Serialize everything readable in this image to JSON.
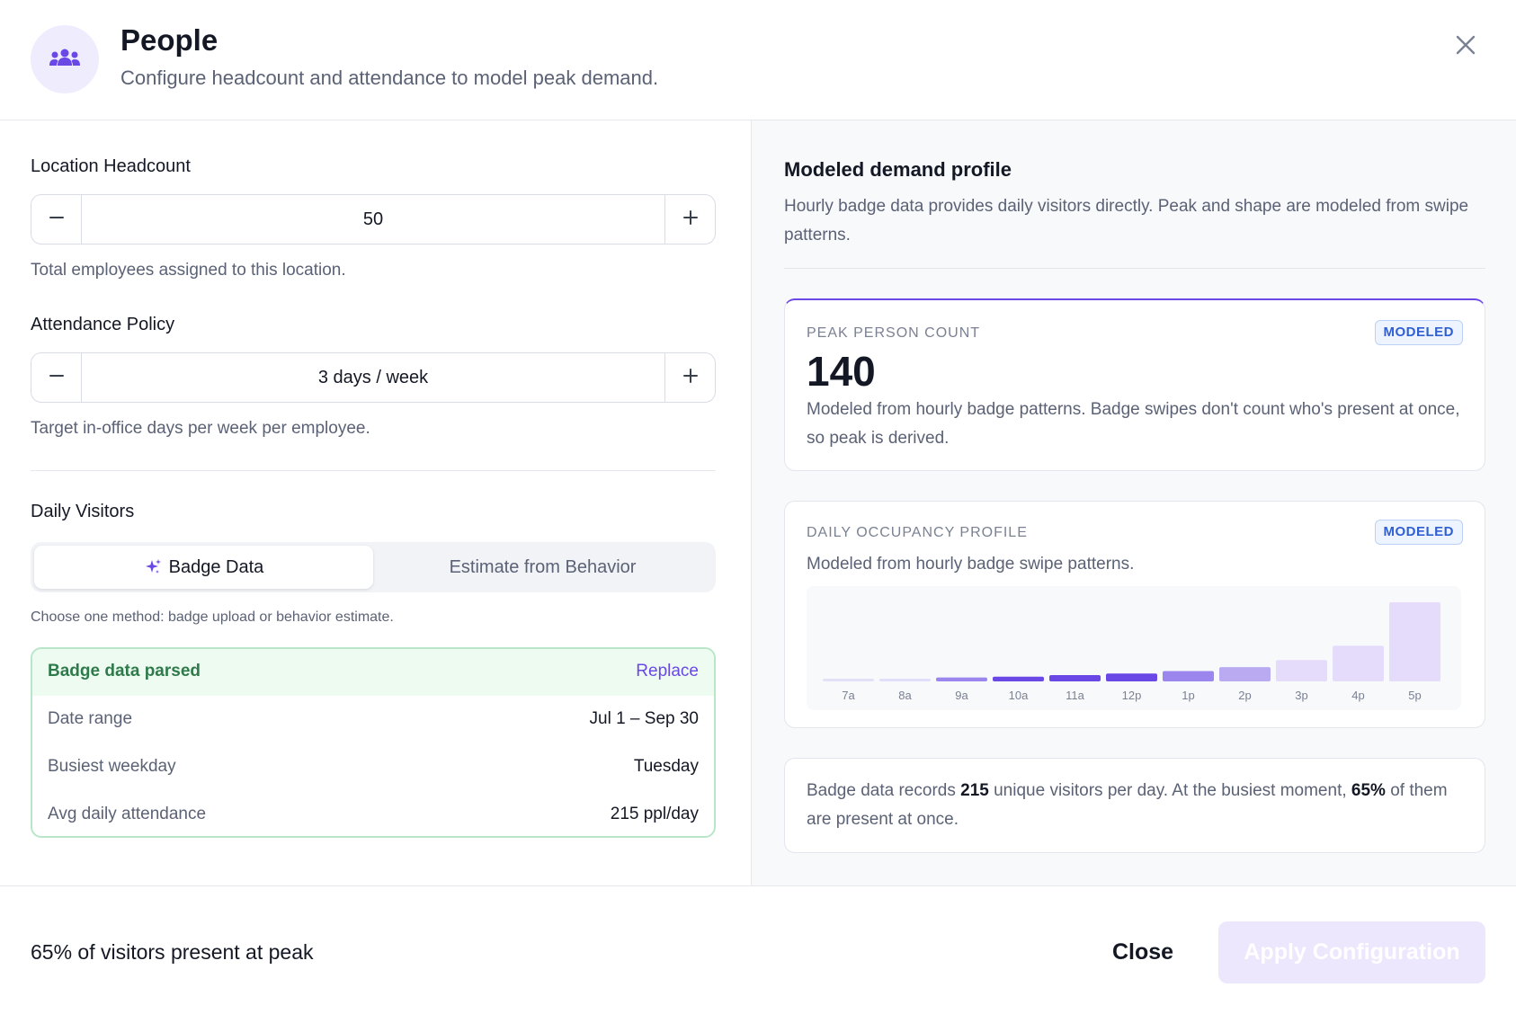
{
  "header": {
    "icon": "people-group-icon",
    "title": "People",
    "subtitle": "Configure headcount and attendance to model peak demand.",
    "close_icon": "close-icon"
  },
  "headcount": {
    "label": "Location Headcount",
    "value": "50",
    "helper": "Total employees assigned to this location."
  },
  "attendance": {
    "label": "Attendance Policy",
    "value": "3 days / week",
    "helper": "Target in-office days per week per employee."
  },
  "visitors": {
    "label": "Daily Visitors",
    "tabs": [
      {
        "label": "Badge Data",
        "icon": "sparkle-icon",
        "active": true
      },
      {
        "label": "Estimate from Behavior",
        "active": false
      }
    ],
    "helper": "Choose one method: badge upload or behavior estimate."
  },
  "badge": {
    "title": "Badge data parsed",
    "replace": "Replace",
    "rows": [
      {
        "key": "Date range",
        "value": "Jul 1 – Sep 30"
      },
      {
        "key": "Busiest weekday",
        "value": "Tuesday"
      },
      {
        "key": "Avg daily attendance",
        "value": "215 ppl/day"
      }
    ]
  },
  "profile": {
    "title": "Modeled demand profile",
    "description": "Hourly badge data provides daily visitors directly. Peak and shape are modeled from swipe patterns."
  },
  "peak": {
    "eyebrow": "Peak person count",
    "chip": "MODELED",
    "value": "140",
    "description": "Modeled from hourly badge patterns. Badge swipes don't count who's present at once, so peak is derived."
  },
  "occupancy": {
    "eyebrow": "Daily occupancy profile",
    "chip": "MODELED",
    "description": "Modeled from hourly badge swipe patterns."
  },
  "chart_data": {
    "type": "bar",
    "categories": [
      "7a",
      "8a",
      "9a",
      "10a",
      "11a",
      "12p",
      "1p",
      "2p",
      "3p",
      "4p",
      "5p"
    ],
    "values": [
      2,
      3,
      5,
      6,
      8,
      10,
      13,
      18,
      27,
      45,
      100
    ],
    "colors": [
      "#e4e0f7",
      "#e2ddf8",
      "#9a86ec",
      "#6a48e6",
      "#6a48e6",
      "#6a48e6",
      "#9a86ec",
      "#b9aaf2",
      "#e5dcfb",
      "#e5dcfb",
      "#e5dcfb"
    ],
    "ylim": [
      0,
      100
    ]
  },
  "summary": {
    "part1": "Badge data records ",
    "visitors": "215",
    "part2": " unique visitors per day. At the busiest moment, ",
    "percent": "65%",
    "part3": " of them are present at once."
  },
  "footer": {
    "status": "65% of visitors present at peak",
    "close": "Close",
    "apply": "Apply Configuration"
  }
}
